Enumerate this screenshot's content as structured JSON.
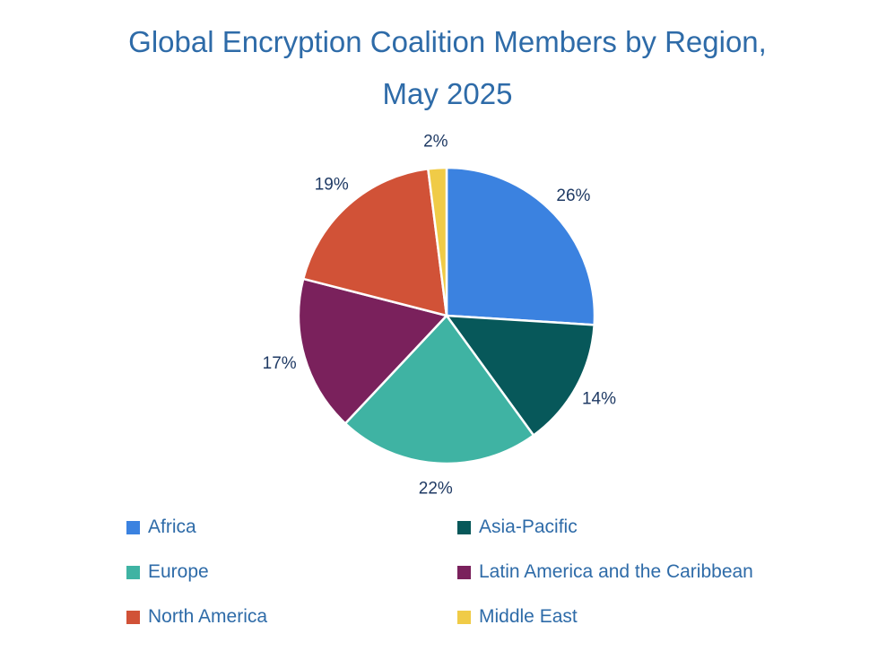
{
  "chart_data": {
    "type": "pie",
    "title": "Global Encryption Coalition Members by Region,",
    "subtitle": "May 2025",
    "slices": [
      {
        "label": "Africa",
        "value": 26,
        "value_label": "26%",
        "color": "#3b82e0"
      },
      {
        "label": "Asia-Pacific",
        "value": 14,
        "value_label": "14%",
        "color": "#07585a"
      },
      {
        "label": "Europe",
        "value": 22,
        "value_label": "22%",
        "color": "#3fb3a3"
      },
      {
        "label": "Latin America and the Caribbean",
        "value": 17,
        "value_label": "17%",
        "color": "#7a215c"
      },
      {
        "label": "North America",
        "value": 19,
        "value_label": "19%",
        "color": "#d15237"
      },
      {
        "label": "Middle East",
        "value": 2,
        "value_label": "2%",
        "color": "#f0cb47"
      }
    ],
    "legend_order": [
      "Africa",
      "Asia-Pacific",
      "Europe",
      "Latin America and the Caribbean",
      "North America",
      "Middle East"
    ],
    "legend_position": "bottom"
  },
  "colors": {
    "title_text": "#2e6ba8",
    "label_text": "#1f3a64",
    "slice_border": "#ffffff"
  }
}
